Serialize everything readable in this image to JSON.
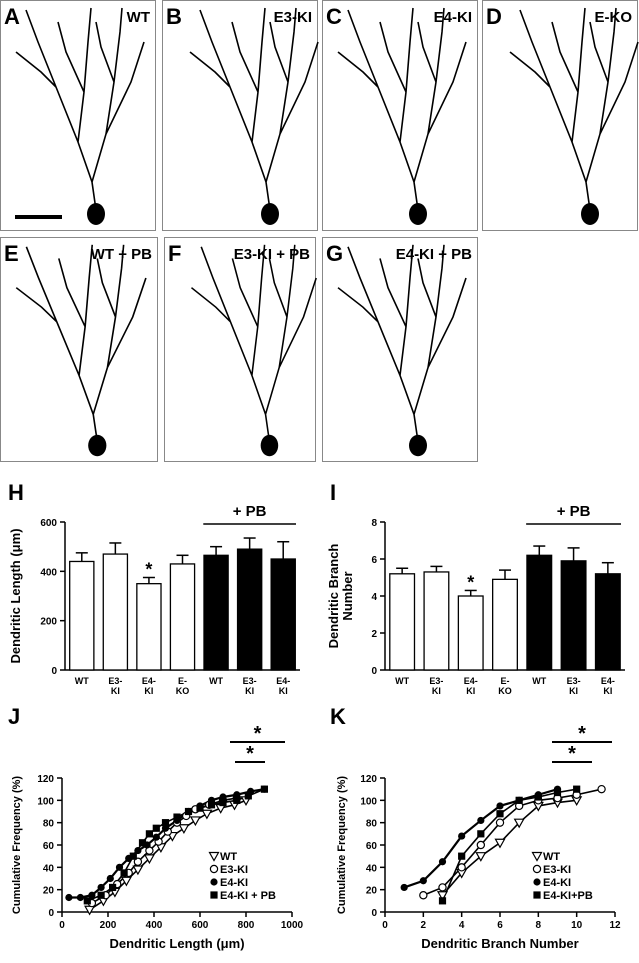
{
  "micrographs": [
    {
      "panel": "A",
      "label": "WT"
    },
    {
      "panel": "B",
      "label": "E3-KI"
    },
    {
      "panel": "C",
      "label": "E4-KI"
    },
    {
      "panel": "D",
      "label": "E-KO"
    },
    {
      "panel": "E",
      "label": "WT + PB"
    },
    {
      "panel": "F",
      "label": "E3-KI + PB"
    },
    {
      "panel": "G",
      "label": "E4-KI + PB"
    }
  ],
  "chart_data": [
    {
      "type": "bar",
      "panel": "H",
      "ylabel": "Dendritic Length (μm)",
      "categories": [
        "WT",
        "E3-\nKI",
        "E4-\nKI",
        "E-\nKO",
        "WT",
        "E3-\nKI",
        "E4-\nKI"
      ],
      "values": [
        440,
        470,
        350,
        430,
        465,
        490,
        450
      ],
      "errors": [
        35,
        45,
        25,
        35,
        35,
        45,
        70
      ],
      "colors": [
        "#ffffff",
        "#ffffff",
        "#ffffff",
        "#ffffff",
        "#000000",
        "#000000",
        "#000000"
      ],
      "significance": "*",
      "group_label": "+ PB",
      "ylim": [
        0,
        600
      ],
      "yticks": [
        0,
        200,
        400,
        600
      ]
    },
    {
      "type": "bar",
      "panel": "I",
      "ylabel": "Dendritic Branch\nNumber",
      "categories": [
        "WT",
        "E3-\nKI",
        "E4-\nKI",
        "E-\nKO",
        "WT",
        "E3-\nKI",
        "E4-\nKI"
      ],
      "values": [
        5.2,
        5.3,
        4.0,
        4.9,
        6.2,
        5.9,
        5.2
      ],
      "errors": [
        0.3,
        0.3,
        0.3,
        0.5,
        0.5,
        0.7,
        0.6
      ],
      "colors": [
        "#ffffff",
        "#ffffff",
        "#ffffff",
        "#ffffff",
        "#000000",
        "#000000",
        "#000000"
      ],
      "significance": "*",
      "group_label": "+ PB",
      "ylim": [
        0,
        8
      ],
      "yticks": [
        0,
        2,
        4,
        6,
        8
      ]
    },
    {
      "type": "line",
      "panel": "J",
      "xlabel": "Dendritic Length (μm)",
      "ylabel": "Cumulative Frequency (%)",
      "annotations": [
        "*",
        "*"
      ],
      "xlim": [
        0,
        1000
      ],
      "xticks": [
        0,
        200,
        400,
        600,
        800,
        1000
      ],
      "ylim": [
        0,
        120
      ],
      "yticks": [
        0,
        20,
        40,
        60,
        80,
        100,
        120
      ],
      "series": [
        {
          "name": "WT",
          "marker": "triangle-open",
          "color": "#000000",
          "x": [
            120,
            180,
            230,
            280,
            330,
            380,
            430,
            480,
            530,
            580,
            630,
            690,
            750,
            800
          ],
          "values": [
            2,
            10,
            18,
            28,
            38,
            48,
            58,
            68,
            75,
            82,
            88,
            93,
            96,
            100
          ]
        },
        {
          "name": "E3-KI",
          "marker": "circle-open",
          "color": "#000000",
          "x": [
            130,
            190,
            240,
            290,
            330,
            380,
            420,
            460,
            500,
            540,
            580,
            640,
            700,
            760
          ],
          "values": [
            8,
            15,
            25,
            35,
            45,
            55,
            63,
            72,
            80,
            86,
            92,
            96,
            100,
            102
          ]
        },
        {
          "name": "E4-KI",
          "marker": "circle",
          "color": "#000000",
          "x": [
            30,
            80,
            130,
            170,
            210,
            250,
            290,
            330,
            370,
            410,
            450,
            500,
            550,
            600,
            650,
            700,
            760,
            820,
            880
          ],
          "values": [
            13,
            13,
            15,
            22,
            30,
            40,
            48,
            55,
            60,
            67,
            75,
            82,
            90,
            95,
            100,
            103,
            105,
            108,
            110
          ]
        },
        {
          "name": "E4-KI + PB",
          "marker": "square",
          "color": "#000000",
          "x": [
            110,
            170,
            220,
            270,
            310,
            350,
            380,
            410,
            450,
            500,
            550,
            600,
            650,
            700,
            760,
            810,
            880
          ],
          "values": [
            10,
            15,
            22,
            35,
            50,
            62,
            70,
            75,
            80,
            85,
            90,
            93,
            96,
            98,
            100,
            104,
            110
          ]
        }
      ]
    },
    {
      "type": "line",
      "panel": "K",
      "xlabel": "Dendritic Branch Number",
      "ylabel": "Cumulative Frequency (%)",
      "annotations": [
        "*",
        "*"
      ],
      "xlim": [
        0,
        12
      ],
      "xticks": [
        0,
        2,
        4,
        6,
        8,
        10,
        12
      ],
      "ylim": [
        0,
        120
      ],
      "yticks": [
        0,
        20,
        40,
        60,
        80,
        100,
        120
      ],
      "series": [
        {
          "name": "WT",
          "marker": "triangle-open",
          "color": "#000000",
          "x": [
            3,
            4,
            5,
            6,
            7,
            8,
            9,
            10
          ],
          "values": [
            15,
            35,
            50,
            62,
            80,
            95,
            98,
            100
          ]
        },
        {
          "name": "E3-KI",
          "marker": "circle-open",
          "color": "#000000",
          "x": [
            2,
            3,
            4,
            5,
            6,
            7,
            8,
            9,
            10,
            11.3
          ],
          "values": [
            15,
            22,
            40,
            60,
            80,
            95,
            100,
            102,
            105,
            110
          ]
        },
        {
          "name": "E4-KI",
          "marker": "circle",
          "color": "#000000",
          "x": [
            1,
            2,
            3,
            4,
            5,
            6,
            7,
            8,
            9
          ],
          "values": [
            22,
            28,
            45,
            68,
            82,
            95,
            100,
            105,
            110
          ]
        },
        {
          "name": "E4-KI+PB",
          "marker": "square",
          "color": "#000000",
          "x": [
            3,
            4,
            5,
            6,
            7,
            8,
            9,
            10
          ],
          "values": [
            10,
            50,
            70,
            88,
            100,
            103,
            107,
            110
          ]
        }
      ]
    }
  ]
}
